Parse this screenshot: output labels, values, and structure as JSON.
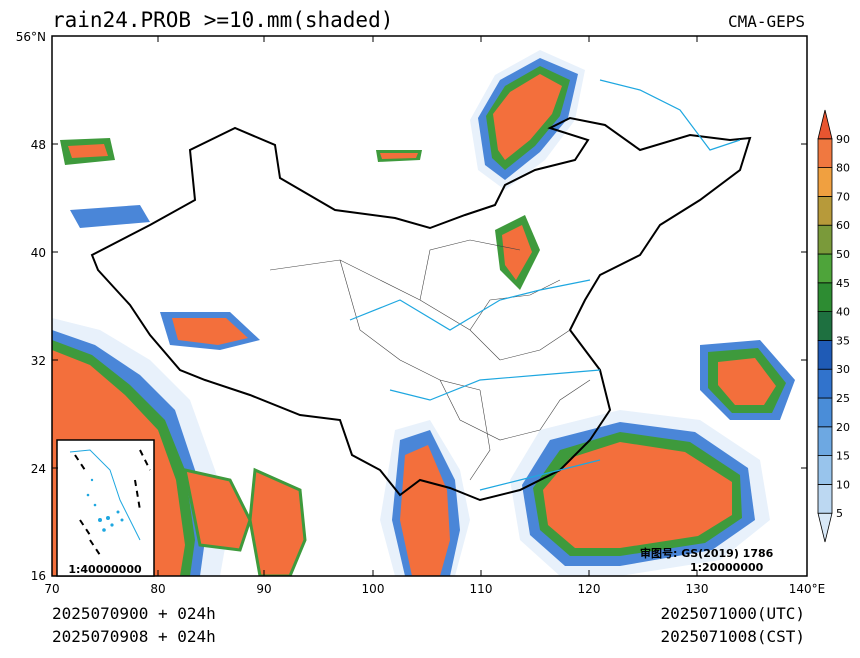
{
  "title": "rain24.PROB >=10.mm(shaded)",
  "source": "CMA-GEPS",
  "footer": {
    "left_line1": "2025070900 + 024h",
    "left_line2": "2025070908 + 024h",
    "right_line1": "2025071000(UTC)",
    "right_line2": "2025071008(CST)"
  },
  "map": {
    "lat_labels": [
      "56°N",
      "48",
      "40",
      "32",
      "24",
      "16"
    ],
    "lon_labels": [
      "70",
      "80",
      "90",
      "100",
      "110",
      "120",
      "130",
      "140°E"
    ],
    "review_no": "审图号: GS(2019) 1786",
    "scale_main": "1:20000000",
    "scale_inset": "1:40000000"
  },
  "colorbar": {
    "levels": [
      "5",
      "10",
      "15",
      "20",
      "25",
      "30",
      "35",
      "40",
      "45",
      "50",
      "60",
      "70",
      "80",
      "90"
    ],
    "colors": [
      "#d8e8f7",
      "#bcd8f2",
      "#98c4ec",
      "#6da8e2",
      "#4a8dd8",
      "#3173cc",
      "#1f5bb6",
      "#1e7040",
      "#2d8c32",
      "#4ea43a",
      "#7a9a3a",
      "#b79a3a",
      "#f0a040",
      "#f07840",
      "#e85530"
    ]
  },
  "colors": {
    "high_prob": "#f36f3c",
    "mid_prob": "#3e9a3c",
    "low_prob": "#4a86d8",
    "river": "#1ea7e0"
  }
}
